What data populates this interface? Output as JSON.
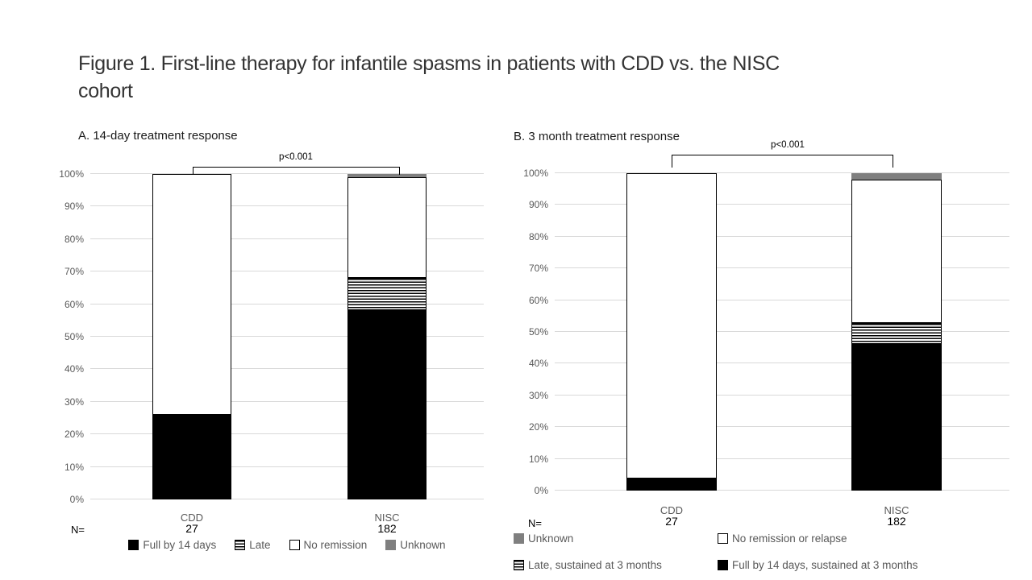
{
  "slide": {
    "title": "Figure 1. First-line therapy for infantile spasms in patients with CDD vs. the NISC\ncohort"
  },
  "chart_data": [
    {
      "id": "A",
      "type": "stacked-bar-100pct",
      "subtitle": "A. 14-day treatment response",
      "p_value": "p<0.001",
      "n_prefix": "N=",
      "categories": [
        "CDD",
        "NISC"
      ],
      "n_values": [
        "27",
        "182"
      ],
      "y_ticks": [
        "0%",
        "10%",
        "20%",
        "30%",
        "40%",
        "50%",
        "60%",
        "70%",
        "80%",
        "90%",
        "100%"
      ],
      "ylim": [
        0,
        100
      ],
      "grid": true,
      "series": [
        {
          "name": "Full by 14 days",
          "style": "black",
          "values": [
            25.9,
            58.2
          ]
        },
        {
          "name": "Late",
          "style": "hatch",
          "values": [
            0,
            9.9
          ]
        },
        {
          "name": "No remission",
          "style": "white",
          "values": [
            74.1,
            30.8
          ]
        },
        {
          "name": "Unknown",
          "style": "gray",
          "values": [
            0,
            1.1
          ]
        }
      ],
      "legend": {
        "layout": "row",
        "items": [
          {
            "label": "Full by 14 days",
            "style": "black"
          },
          {
            "label": "Late",
            "style": "hatch"
          },
          {
            "label": "No remission",
            "style": "white"
          },
          {
            "label": "Unknown",
            "style": "gray"
          }
        ]
      }
    },
    {
      "id": "B",
      "type": "stacked-bar-100pct",
      "subtitle": "B. 3 month treatment response",
      "p_value": "p<0.001",
      "n_prefix": "N=",
      "categories": [
        "CDD",
        "NISC"
      ],
      "n_values": [
        "27",
        "182"
      ],
      "y_ticks": [
        "0%",
        "10%",
        "20%",
        "30%",
        "40%",
        "50%",
        "60%",
        "70%",
        "80%",
        "90%",
        "100%"
      ],
      "ylim": [
        0,
        100
      ],
      "grid": true,
      "series": [
        {
          "name": "Full by 14 days, sustained at 3 months",
          "style": "black",
          "values": [
            3.7,
            46.2
          ]
        },
        {
          "name": "Late, sustained at 3 months",
          "style": "hatch",
          "values": [
            0,
            6.6
          ]
        },
        {
          "name": "No remission or relapse",
          "style": "white",
          "values": [
            96.3,
            45.1
          ]
        },
        {
          "name": "Unknown",
          "style": "gray",
          "values": [
            0,
            2.2
          ]
        }
      ],
      "legend": {
        "layout": "grid",
        "items": [
          {
            "label": "Unknown",
            "style": "gray"
          },
          {
            "label": "No remission or relapse",
            "style": "white"
          },
          {
            "label": "Late, sustained at 3 months",
            "style": "hatch"
          },
          {
            "label": "Full by 14 days, sustained at 3 months",
            "style": "black"
          }
        ]
      }
    }
  ],
  "colors": {
    "segment_black": "#000000",
    "segment_gray": "#7f7f7f",
    "segment_white": "#ffffff",
    "gridline": "#d9d9d9",
    "axis_text": "#595959",
    "title_text": "#333333"
  }
}
